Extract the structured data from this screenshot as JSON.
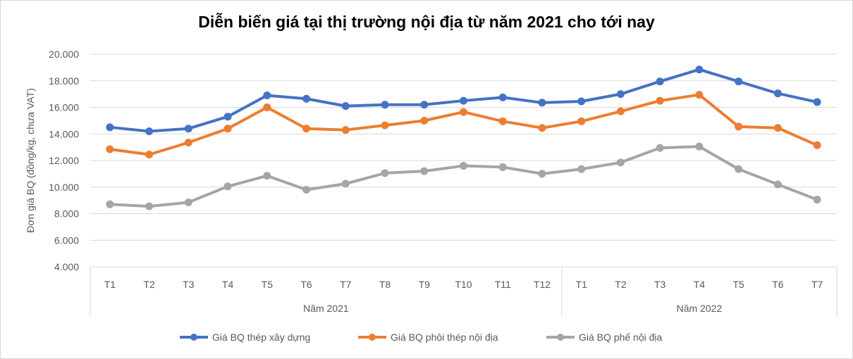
{
  "chart_data": {
    "type": "line",
    "title": "Diễn biến giá tại thị trường nội địa từ năm 2021 cho tới nay",
    "ylabel": "Đơn giá BQ (đồng/kg, chưa VAT)",
    "xlabel": "",
    "ylim": [
      4000,
      20000
    ],
    "yticks": [
      "4.000",
      "6.000",
      "8.000",
      "10.000",
      "12.000",
      "14.000",
      "16.000",
      "18.000",
      "20.000"
    ],
    "ytick_values": [
      4000,
      6000,
      8000,
      10000,
      12000,
      14000,
      16000,
      18000,
      20000
    ],
    "categories": [
      "T1",
      "T2",
      "T3",
      "T4",
      "T5",
      "T6",
      "T7",
      "T8",
      "T9",
      "T10",
      "T11",
      "T12",
      "T1",
      "T2",
      "T3",
      "T4",
      "T5",
      "T6",
      "T7"
    ],
    "groups": [
      {
        "label": "Năm 2021",
        "count": 12
      },
      {
        "label": "Năm 2022",
        "count": 7
      }
    ],
    "grid": true,
    "legend_position": "bottom",
    "series": [
      {
        "name": "Giá BQ thép xây dựng",
        "color": "#4472c4",
        "values": [
          14500,
          14200,
          14400,
          15300,
          16900,
          16650,
          16100,
          16200,
          16200,
          16500,
          16750,
          16350,
          16450,
          17000,
          17950,
          18850,
          17950,
          17050,
          16400
        ]
      },
      {
        "name": "Giá BQ phôi thép nội địa",
        "color": "#ed7d31",
        "values": [
          12850,
          12450,
          13350,
          14400,
          16000,
          14400,
          14300,
          14650,
          15000,
          15650,
          14950,
          14450,
          14950,
          15700,
          16500,
          16950,
          14550,
          14450,
          13150
        ]
      },
      {
        "name": "Giá BQ phế nội địa",
        "color": "#a5a5a5",
        "values": [
          8700,
          8550,
          8850,
          10050,
          10850,
          9800,
          10250,
          11050,
          11200,
          11600,
          11500,
          11000,
          11350,
          11850,
          12950,
          13050,
          11350,
          10200,
          9050
        ]
      }
    ]
  }
}
